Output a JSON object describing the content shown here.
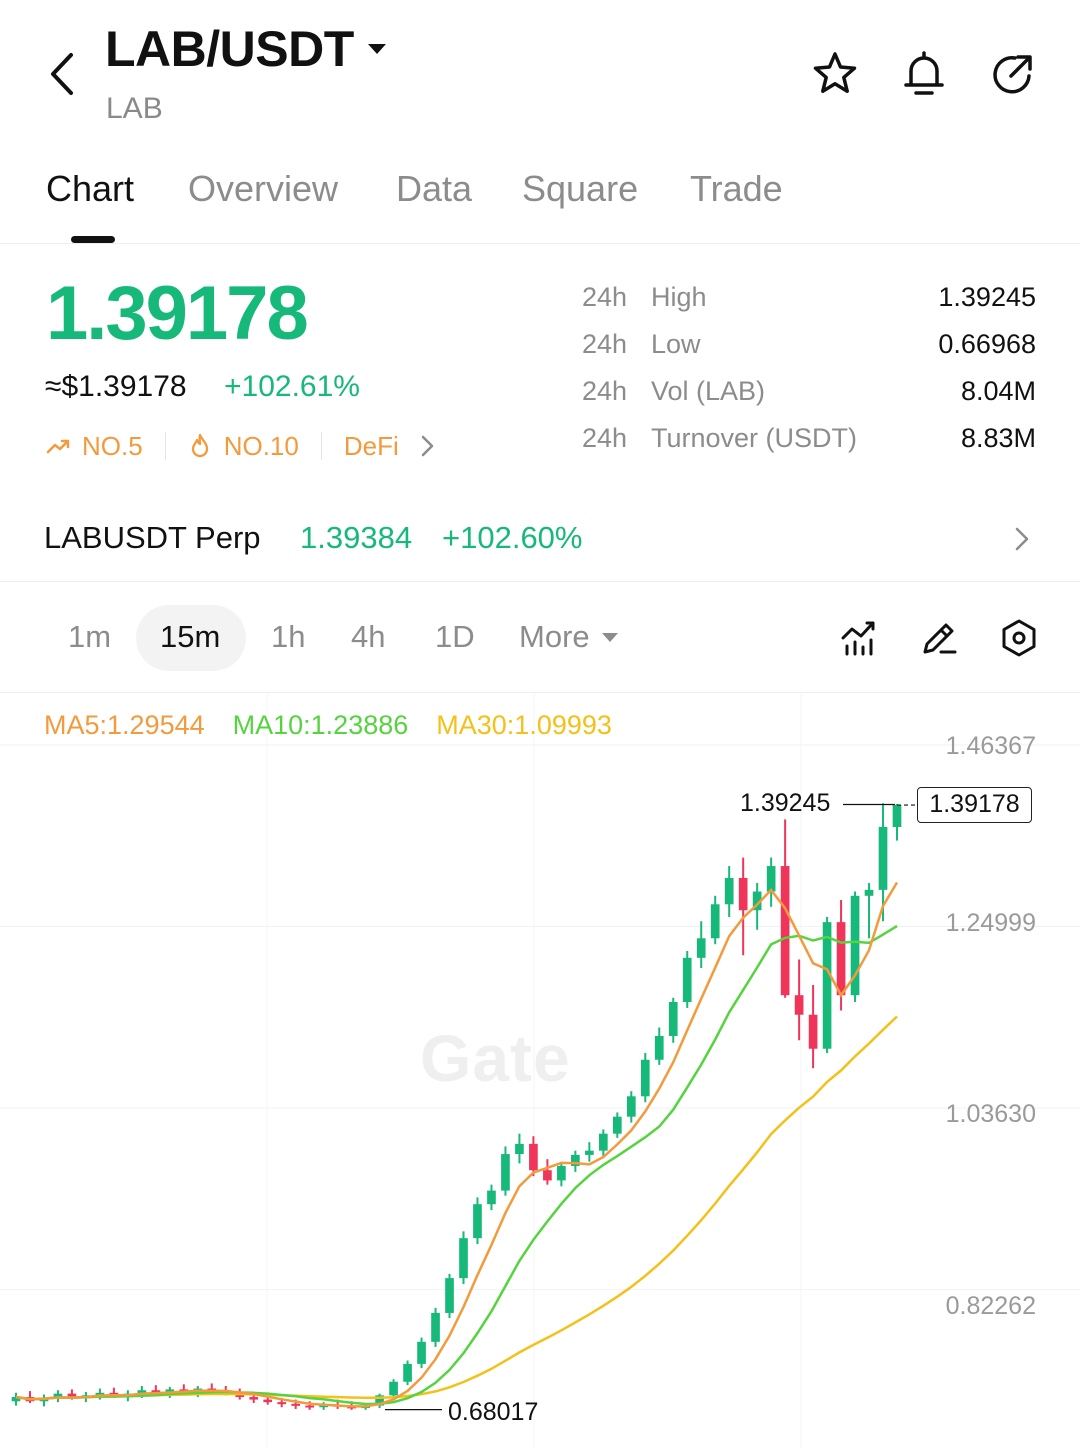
{
  "header": {
    "pair": "LAB/USDT",
    "base": "LAB",
    "icons": [
      "back-chevron-icon",
      "star-icon",
      "bell-icon",
      "share-icon"
    ]
  },
  "tabs": [
    "Chart",
    "Overview",
    "Data",
    "Square",
    "Trade"
  ],
  "active_tab": "Chart",
  "price": {
    "last": "1.39178",
    "usd": "≈$1.39178",
    "change": "+102.61%",
    "color_up": "#16b979",
    "tags": [
      {
        "icon": "trend-up-icon",
        "label": "NO.5"
      },
      {
        "icon": "fire-icon",
        "label": "NO.10"
      },
      {
        "icon": "chevron-right-icon",
        "label": "DeFi"
      }
    ],
    "tag_color": "#f39a3d"
  },
  "stats": [
    {
      "period": "24h",
      "name": "High",
      "value": "1.39245"
    },
    {
      "period": "24h",
      "name": "Low",
      "value": "0.66968"
    },
    {
      "period": "24h",
      "name": "Vol (LAB)",
      "value": "8.04M"
    },
    {
      "period": "24h",
      "name": "Turnover (USDT)",
      "value": "8.83M"
    }
  ],
  "perp": {
    "name": "LABUSDT Perp",
    "price": "1.39384",
    "change": "+102.60%"
  },
  "intervals": {
    "items": [
      "1m",
      "15m",
      "1h",
      "4h",
      "1D"
    ],
    "active": "15m",
    "more": "More",
    "tools": [
      "indicator-icon",
      "draw-pen-icon",
      "settings-icon"
    ]
  },
  "chart_data": {
    "type": "candlestick",
    "ma": {
      "ma5": "MA5:1.29544",
      "ma10": "MA10:1.23886",
      "ma30": "MA30:1.09993"
    },
    "y_axis_labels": [
      "1.46367",
      "1.24999",
      "1.03630",
      "0.82262"
    ],
    "ylim": [
      0.6515,
      1.46367
    ],
    "high_marker": "1.39245",
    "low_marker": "0.68017",
    "last_price": "1.39178",
    "watermark": "Gate",
    "colors": {
      "up": "#16b979",
      "down": "#f0355a",
      "ma5": "#f39a3d",
      "ma10": "#55d43f",
      "ma30": "#f4c01a"
    },
    "candles": [
      [
        0.69,
        0.7,
        0.685,
        0.695
      ],
      [
        0.695,
        0.702,
        0.688,
        0.69
      ],
      [
        0.69,
        0.698,
        0.684,
        0.694
      ],
      [
        0.694,
        0.703,
        0.689,
        0.699
      ],
      [
        0.699,
        0.704,
        0.692,
        0.694
      ],
      [
        0.694,
        0.701,
        0.689,
        0.697
      ],
      [
        0.697,
        0.705,
        0.692,
        0.7
      ],
      [
        0.7,
        0.706,
        0.694,
        0.696
      ],
      [
        0.696,
        0.703,
        0.69,
        0.699
      ],
      [
        0.699,
        0.708,
        0.694,
        0.703
      ],
      [
        0.703,
        0.709,
        0.696,
        0.7
      ],
      [
        0.7,
        0.707,
        0.694,
        0.704
      ],
      [
        0.704,
        0.71,
        0.698,
        0.701
      ],
      [
        0.701,
        0.708,
        0.695,
        0.705
      ],
      [
        0.705,
        0.711,
        0.699,
        0.702
      ],
      [
        0.702,
        0.708,
        0.697,
        0.699
      ],
      [
        0.699,
        0.705,
        0.692,
        0.695
      ],
      [
        0.695,
        0.7,
        0.688,
        0.692
      ],
      [
        0.692,
        0.698,
        0.686,
        0.689
      ],
      [
        0.689,
        0.694,
        0.683,
        0.687
      ],
      [
        0.687,
        0.692,
        0.681,
        0.685
      ],
      [
        0.685,
        0.69,
        0.68,
        0.683
      ],
      [
        0.683,
        0.689,
        0.68,
        0.686
      ],
      [
        0.686,
        0.692,
        0.681,
        0.684
      ],
      [
        0.684,
        0.69,
        0.68,
        0.682
      ],
      [
        0.682,
        0.688,
        0.68,
        0.685
      ],
      [
        0.685,
        0.699,
        0.682,
        0.697
      ],
      [
        0.697,
        0.716,
        0.693,
        0.713
      ],
      [
        0.713,
        0.738,
        0.709,
        0.734
      ],
      [
        0.734,
        0.765,
        0.729,
        0.76
      ],
      [
        0.76,
        0.8,
        0.754,
        0.794
      ],
      [
        0.794,
        0.84,
        0.788,
        0.835
      ],
      [
        0.835,
        0.89,
        0.828,
        0.882
      ],
      [
        0.882,
        0.93,
        0.875,
        0.922
      ],
      [
        0.922,
        0.945,
        0.915,
        0.938
      ],
      [
        0.938,
        0.99,
        0.932,
        0.981
      ],
      [
        0.981,
        1.005,
        0.97,
        0.993
      ],
      [
        0.993,
        1.002,
        0.955,
        0.962
      ],
      [
        0.962,
        0.975,
        0.945,
        0.95
      ],
      [
        0.95,
        0.972,
        0.943,
        0.967
      ],
      [
        0.967,
        0.985,
        0.96,
        0.98
      ],
      [
        0.98,
        0.995,
        0.972,
        0.985
      ],
      [
        0.985,
        1.01,
        0.978,
        1.005
      ],
      [
        1.005,
        1.03,
        1.0,
        1.025
      ],
      [
        1.025,
        1.055,
        1.018,
        1.049
      ],
      [
        1.049,
        1.1,
        1.042,
        1.092
      ],
      [
        1.092,
        1.13,
        1.086,
        1.12
      ],
      [
        1.12,
        1.165,
        1.112,
        1.16
      ],
      [
        1.16,
        1.22,
        1.153,
        1.212
      ],
      [
        1.212,
        1.255,
        1.2,
        1.235
      ],
      [
        1.235,
        1.285,
        1.228,
        1.275
      ],
      [
        1.275,
        1.32,
        1.26,
        1.306
      ],
      [
        1.306,
        1.33,
        1.215,
        1.268
      ],
      [
        1.268,
        1.3,
        1.245,
        1.29
      ],
      [
        1.29,
        1.33,
        1.272,
        1.32
      ],
      [
        1.32,
        1.375,
        1.165,
        1.168
      ],
      [
        1.168,
        1.21,
        1.115,
        1.145
      ],
      [
        1.145,
        1.18,
        1.082,
        1.105
      ],
      [
        1.105,
        1.26,
        1.1,
        1.254
      ],
      [
        1.254,
        1.28,
        1.15,
        1.168
      ],
      [
        1.168,
        1.29,
        1.16,
        1.285
      ],
      [
        1.285,
        1.3,
        1.235,
        1.292
      ],
      [
        1.292,
        1.394,
        1.255,
        1.366
      ],
      [
        1.366,
        1.393,
        1.35,
        1.392
      ]
    ]
  }
}
